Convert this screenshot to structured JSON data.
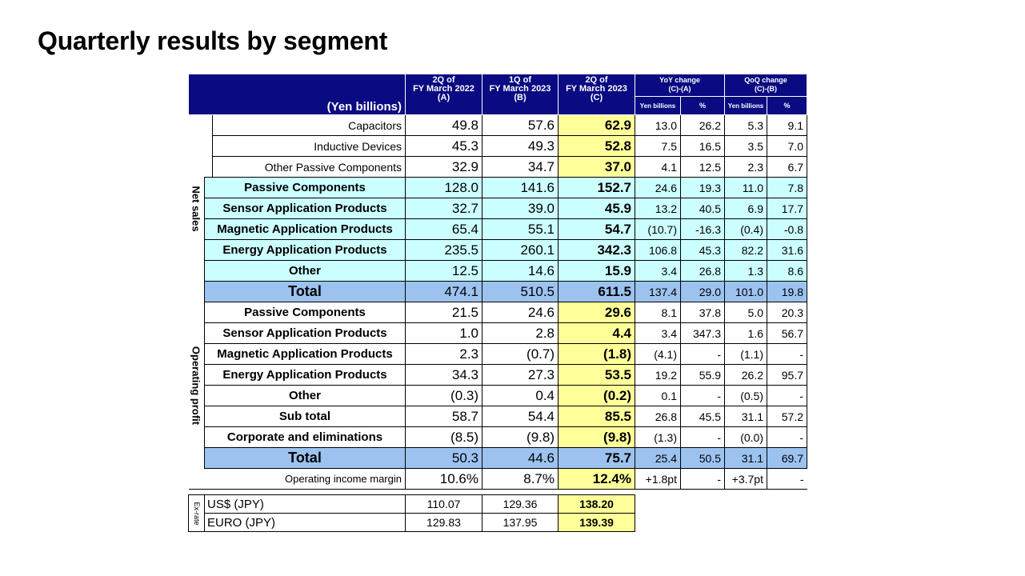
{
  "title": "Quarterly results by segment",
  "unit_label": "(Yen billions)",
  "columns": {
    "a": [
      "2Q of",
      "FY March 2022",
      "(A)"
    ],
    "b": [
      "1Q of",
      "FY March 2023",
      "(B)"
    ],
    "c": [
      "2Q of",
      "FY March 2023",
      "(C)"
    ],
    "yoy": [
      "YoY change",
      "(C)-(A)"
    ],
    "qoq": [
      "QoQ change",
      "(C)-(B)"
    ],
    "yen_billions": "Yen billions",
    "pct": "%"
  },
  "net_sales_label": "Net sales",
  "operating_profit_label": "Operating profit",
  "net_sales_rows": [
    [
      "Capacitors",
      "49.8",
      "57.6",
      "62.9",
      "13.0",
      "26.2",
      "5.3",
      "9.1"
    ],
    [
      "Inductive Devices",
      "45.3",
      "49.3",
      "52.8",
      "7.5",
      "16.5",
      "3.5",
      "7.0"
    ],
    [
      "Other Passive Components",
      "32.9",
      "34.7",
      "37.0",
      "4.1",
      "12.5",
      "2.3",
      "6.7"
    ],
    [
      "Passive Components",
      "128.0",
      "141.6",
      "152.7",
      "24.6",
      "19.3",
      "11.0",
      "7.8"
    ],
    [
      "Sensor Application Products",
      "32.7",
      "39.0",
      "45.9",
      "13.2",
      "40.5",
      "6.9",
      "17.7"
    ],
    [
      "Magnetic Application Products",
      "65.4",
      "55.1",
      "54.7",
      "(10.7)",
      "-16.3",
      "(0.4)",
      "-0.8"
    ],
    [
      "Energy Application Products",
      "235.5",
      "260.1",
      "342.3",
      "106.8",
      "45.3",
      "82.2",
      "31.6"
    ],
    [
      "Other",
      "12.5",
      "14.6",
      "15.9",
      "3.4",
      "26.8",
      "1.3",
      "8.6"
    ],
    [
      "Total",
      "474.1",
      "510.5",
      "611.5",
      "137.4",
      "29.0",
      "101.0",
      "19.8"
    ]
  ],
  "op_rows": [
    [
      "Passive Components",
      "21.5",
      "24.6",
      "29.6",
      "8.1",
      "37.8",
      "5.0",
      "20.3"
    ],
    [
      "Sensor Application Products",
      "1.0",
      "2.8",
      "4.4",
      "3.4",
      "347.3",
      "1.6",
      "56.7"
    ],
    [
      "Magnetic Application Products",
      "2.3",
      "(0.7)",
      "(1.8)",
      "(4.1)",
      "-",
      "(1.1)",
      "-"
    ],
    [
      "Energy Application Products",
      "34.3",
      "27.3",
      "53.5",
      "19.2",
      "55.9",
      "26.2",
      "95.7"
    ],
    [
      "Other",
      "(0.3)",
      "0.4",
      "(0.2)",
      "0.1",
      "-",
      "(0.5)",
      "-"
    ],
    [
      "Sub total",
      "58.7",
      "54.4",
      "85.5",
      "26.8",
      "45.5",
      "31.1",
      "57.2"
    ],
    [
      "Corporate and eliminations",
      "(8.5)",
      "(9.8)",
      "(9.8)",
      "(1.3)",
      "-",
      "(0.0)",
      "-"
    ],
    [
      "Total",
      "50.3",
      "44.6",
      "75.7",
      "25.4",
      "50.5",
      "31.1",
      "69.7"
    ]
  ],
  "margin_row": [
    "Operating income margin",
    "10.6%",
    "8.7%",
    "12.4%",
    "+1.8pt",
    "-",
    "+3.7pt",
    "-"
  ],
  "fx_label": "Ex-rate",
  "fx_rows": [
    [
      "US$ (JPY)",
      "110.07",
      "129.36",
      "138.20"
    ],
    [
      "EURO (JPY)",
      "129.83",
      "137.95",
      "139.39"
    ]
  ],
  "colors": {
    "header_navy": "#0a0a82",
    "net_sales_fill": "#ccffff",
    "total_fill": "#9cc2f0",
    "current_highlight": "#ffff99"
  }
}
